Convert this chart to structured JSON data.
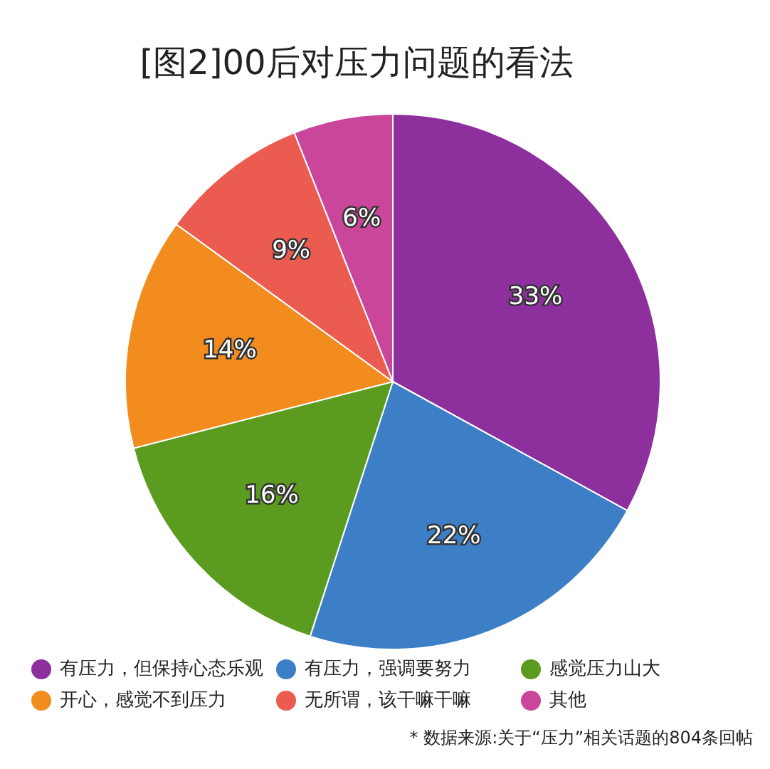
{
  "chart_data": {
    "type": "pie",
    "title": "[图2]00后对压力问题的看法",
    "categories": [
      "有压力，但保持心态乐观",
      "有压力，强调要努力",
      "感觉压力山大",
      "开心，感觉不到压力",
      "无所谓，该干嘛干嘛",
      "其他"
    ],
    "values": [
      33,
      22,
      16,
      14,
      9,
      6
    ],
    "colors": [
      "#8e2f9e",
      "#3d7fc6",
      "#5b9b1f",
      "#f28c1e",
      "#ec5b4f",
      "#c9469b"
    ],
    "value_labels": [
      "33%",
      "22%",
      "16%",
      "14%",
      "9%",
      "6%"
    ],
    "legend": "bottom",
    "annotations": [
      "* 数据来源:关于“压力”相关话题的804条回帖"
    ]
  }
}
